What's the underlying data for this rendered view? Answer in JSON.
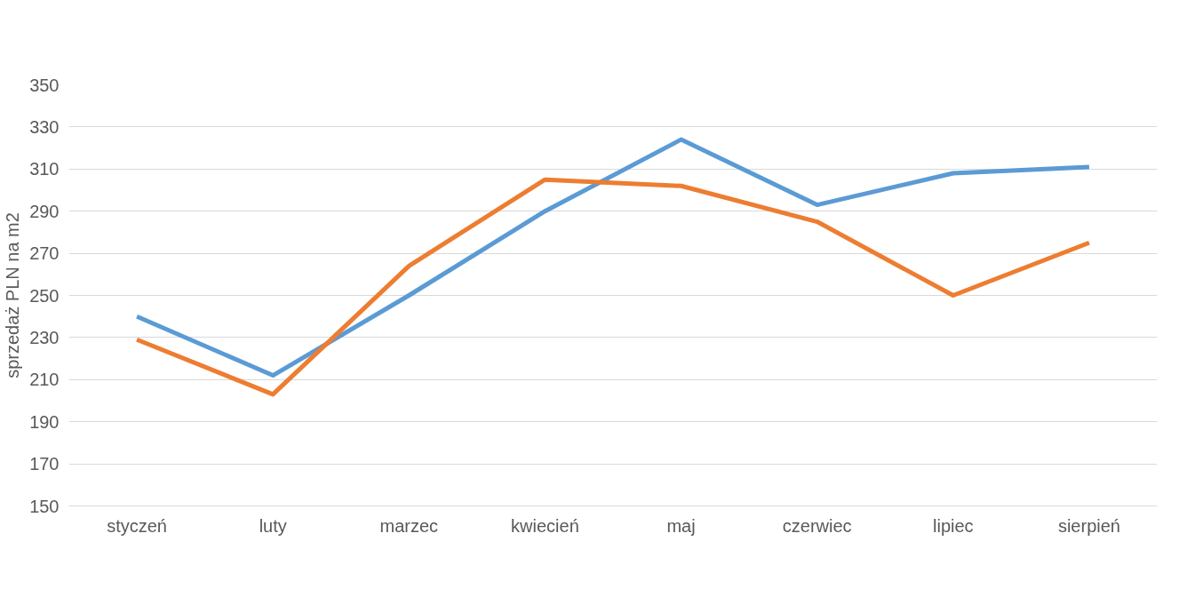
{
  "chart_data": {
    "type": "line",
    "ylabel": "sprzedaż PLN na m2",
    "categories": [
      "styczeń",
      "luty",
      "marzec",
      "kwiecień",
      "maj",
      "czerwiec",
      "lipiec",
      "sierpień"
    ],
    "series": [
      {
        "color": "#5b9bd5",
        "values": [
          240,
          212,
          250,
          290,
          324,
          293,
          308,
          311
        ]
      },
      {
        "color": "#ed7d31",
        "values": [
          229,
          203,
          264,
          305,
          302,
          285,
          250,
          275
        ]
      }
    ],
    "ylim": [
      150,
      350
    ],
    "yticks": [
      150,
      170,
      190,
      210,
      230,
      250,
      270,
      290,
      310,
      330,
      350
    ],
    "grid": "y",
    "marker": "none",
    "line_style": "solid"
  }
}
